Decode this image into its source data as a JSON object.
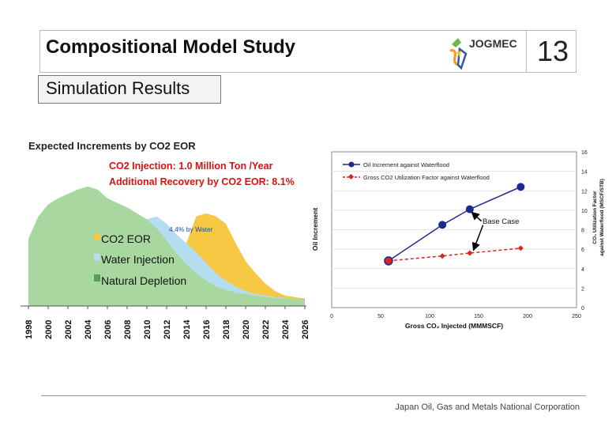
{
  "header": {
    "title": "Compositional Model Study",
    "page_number": "13",
    "logo_text": "JOGMEC"
  },
  "section": {
    "label": "Simulation Results"
  },
  "footer": {
    "org": "Japan Oil, Gas and Metals National Corporation"
  },
  "colors": {
    "depletion": "#a8d8a0",
    "water": "#b5ddf0",
    "eor": "#f6c843",
    "oil_series": "#1f2a8f",
    "co2_series": "#dd2222",
    "red_text": "#dd1111"
  },
  "chart_data": [
    {
      "type": "area",
      "title": "Expected Increments by CO2 EOR",
      "annotations": {
        "line1": "CO2 Injection: 1.0 Million Ton /Year",
        "line2": "Additional Recovery by CO2 EOR: 8.1%",
        "water_note": "4.4% by Water"
      },
      "legend": [
        {
          "name": "CO2 EOR",
          "color": "#f6c843"
        },
        {
          "name": "Water Injection",
          "color": "#b5ddf0"
        },
        {
          "name": "Natural Depletion",
          "color": "#a8d8a0"
        }
      ],
      "x_ticks": [
        "1998",
        "2000",
        "2002",
        "2004",
        "2006",
        "2008",
        "2010",
        "2012",
        "2014",
        "2016",
        "2018",
        "2020",
        "2022",
        "2024",
        "2026"
      ],
      "xlim": [
        1998,
        2026
      ],
      "ylim": [
        0,
        100
      ],
      "depletion": [
        [
          1998,
          45
        ],
        [
          1999,
          60
        ],
        [
          2000,
          68
        ],
        [
          2001,
          72
        ],
        [
          2002,
          75
        ],
        [
          2003,
          78
        ],
        [
          2004,
          80
        ],
        [
          2005,
          78
        ],
        [
          2006,
          72
        ],
        [
          2007,
          69
        ],
        [
          2008,
          66
        ],
        [
          2009,
          62
        ],
        [
          2010,
          58
        ],
        [
          2011,
          52
        ],
        [
          2012,
          44
        ],
        [
          2013,
          35
        ],
        [
          2014,
          28
        ],
        [
          2015,
          22
        ],
        [
          2016,
          17
        ],
        [
          2017,
          13
        ],
        [
          2018,
          11
        ],
        [
          2019,
          9
        ],
        [
          2020,
          8
        ],
        [
          2021,
          7
        ],
        [
          2022,
          6
        ],
        [
          2023,
          5.5
        ],
        [
          2024,
          5
        ],
        [
          2025,
          5
        ],
        [
          2026,
          5
        ]
      ],
      "water": [
        [
          2010,
          58
        ],
        [
          2011,
          60
        ],
        [
          2012,
          55
        ],
        [
          2013,
          48
        ],
        [
          2014,
          42
        ],
        [
          2015,
          36
        ],
        [
          2016,
          29
        ],
        [
          2017,
          22
        ],
        [
          2018,
          17
        ],
        [
          2019,
          13
        ],
        [
          2020,
          10
        ],
        [
          2021,
          8
        ],
        [
          2022,
          7
        ],
        [
          2023,
          6
        ],
        [
          2024,
          5.5
        ],
        [
          2025,
          5
        ],
        [
          2026,
          5
        ]
      ],
      "eor": [
        [
          2014,
          42
        ],
        [
          2015,
          60
        ],
        [
          2016,
          62
        ],
        [
          2017,
          60
        ],
        [
          2018,
          55
        ],
        [
          2019,
          42
        ],
        [
          2020,
          30
        ],
        [
          2021,
          22
        ],
        [
          2022,
          15
        ],
        [
          2023,
          10
        ],
        [
          2024,
          7
        ],
        [
          2025,
          6
        ],
        [
          2026,
          5
        ]
      ]
    },
    {
      "type": "line",
      "xlabel": "Gross CO₂ Injected (MMMSCF)",
      "ylabel": "Oil Increment",
      "y2label_line1": "CO₂ Utilization Factor",
      "y2label_line2": "against Waterflood (MSCF/STB)",
      "xlim": [
        0,
        250
      ],
      "x_ticks": [
        0,
        50,
        100,
        150,
        200,
        250
      ],
      "y2lim": [
        0,
        16
      ],
      "y2_ticks": [
        0,
        2,
        4,
        6,
        8,
        10,
        12,
        14,
        16
      ],
      "annotation": "Base Case",
      "base_case_x": 140,
      "series": [
        {
          "name": "Oil Increment against Waterflood",
          "x": [
            58,
            113,
            141,
            193
          ],
          "y": [
            4.8,
            8.5,
            10.1,
            12.4
          ]
        },
        {
          "name": "Gross CO2 Utilization Factor against Waterflood",
          "x": [
            58,
            113,
            141,
            193
          ],
          "y": [
            4.8,
            5.3,
            5.6,
            6.1
          ]
        }
      ]
    }
  ]
}
